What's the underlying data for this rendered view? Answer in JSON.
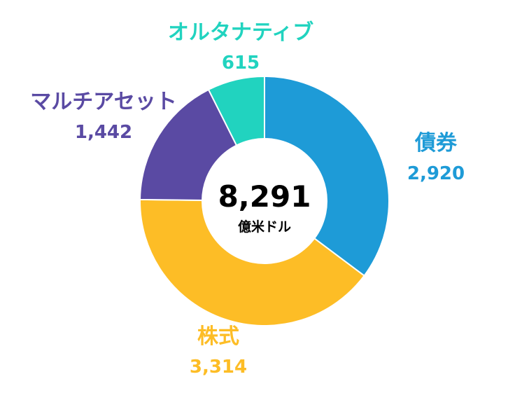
{
  "chart_data": {
    "type": "pie",
    "total": "8,291",
    "total_unit": "億米ドル",
    "slices": [
      {
        "name": "債券",
        "value": 2920,
        "value_label": "2,920",
        "color": "#1E9BD7"
      },
      {
        "name": "株式",
        "value": 3314,
        "value_label": "3,314",
        "color": "#FDBD26"
      },
      {
        "name": "マルチアセット",
        "value": 1442,
        "value_label": "1,442",
        "color": "#5A4AA3"
      },
      {
        "name": "オルタナティブ",
        "value": 615,
        "value_label": "615",
        "color": "#21D3BF"
      }
    ]
  }
}
